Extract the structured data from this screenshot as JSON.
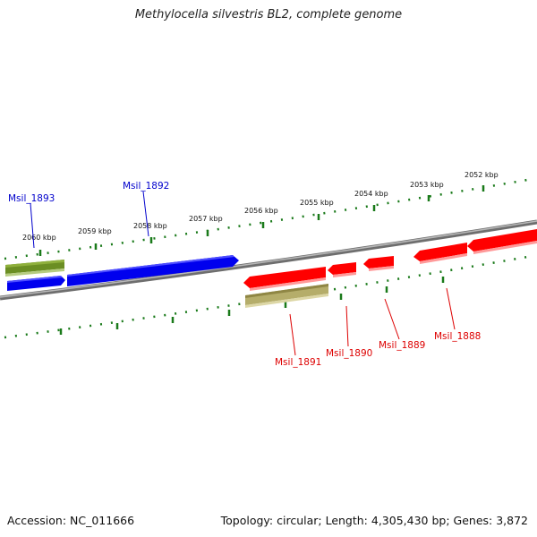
{
  "title": "Methylocella silvestris BL2, complete genome",
  "footer": {
    "accession": "Accession: NC_011666",
    "stats": "Topology: circular; Length: 4,305,430 bp; Genes: 3,872"
  },
  "colors": {
    "gene_blue": "#0000ee",
    "gene_red": "#ff0000",
    "gene_olive": "#6b8e23",
    "gene_khaki": "#b5ad6a",
    "label_blue": "#0000cc",
    "label_red": "#dd0000",
    "tick_green": "#1a7a1a",
    "backbone": "#808080"
  },
  "ticks": [
    {
      "label": "2060 kbp"
    },
    {
      "label": "2059 kbp"
    },
    {
      "label": "2058 kbp"
    },
    {
      "label": "2057 kbp"
    },
    {
      "label": "2056 kbp"
    },
    {
      "label": "2055 kbp"
    },
    {
      "label": "2054 kbp"
    },
    {
      "label": "2053 kbp"
    },
    {
      "label": "2052 kbp"
    }
  ],
  "genes": [
    {
      "label": "Msil_1893",
      "strand": "forward"
    },
    {
      "label": "Msil_1892",
      "strand": "forward"
    },
    {
      "label": "Msil_1891",
      "strand": "reverse"
    },
    {
      "label": "Msil_1890",
      "strand": "reverse"
    },
    {
      "label": "Msil_1889",
      "strand": "reverse"
    },
    {
      "label": "Msil_1888",
      "strand": "reverse"
    }
  ]
}
